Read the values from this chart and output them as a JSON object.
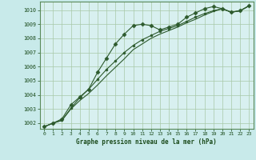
{
  "title": "Graphe pression niveau de la mer (hPa)",
  "bg_color": "#c8eaea",
  "plot_bg_color": "#d8f0f0",
  "grid_color": "#a8c8a8",
  "line_color": "#2d5a2d",
  "text_color": "#1a4a1a",
  "border_color": "#5a8a5a",
  "xlim": [
    -0.5,
    23.5
  ],
  "ylim": [
    1001.6,
    1010.6
  ],
  "yticks": [
    1002,
    1003,
    1004,
    1005,
    1006,
    1007,
    1008,
    1009,
    1010
  ],
  "xticks": [
    0,
    1,
    2,
    3,
    4,
    5,
    6,
    7,
    8,
    9,
    10,
    11,
    12,
    13,
    14,
    15,
    16,
    17,
    18,
    19,
    20,
    21,
    22,
    23
  ],
  "series1_x": [
    0,
    1,
    2,
    3,
    4,
    5,
    6,
    7,
    8,
    9,
    10,
    11,
    12,
    13,
    14,
    15,
    16,
    17,
    18,
    19,
    20,
    21,
    22,
    23
  ],
  "series1_y": [
    1001.75,
    1002.0,
    1002.3,
    1003.3,
    1003.85,
    1004.4,
    1005.6,
    1006.6,
    1007.6,
    1008.3,
    1008.9,
    1009.0,
    1008.9,
    1008.6,
    1008.8,
    1009.0,
    1009.5,
    1009.8,
    1010.1,
    1010.25,
    1010.1,
    1009.85,
    1009.95,
    1010.3
  ],
  "series2_x": [
    0,
    1,
    2,
    3,
    4,
    5,
    6,
    7,
    8,
    9,
    10,
    11,
    12,
    13,
    14,
    15,
    16,
    17,
    18,
    19,
    20,
    21,
    22,
    23
  ],
  "series2_y": [
    1001.75,
    1002.0,
    1002.2,
    1003.05,
    1003.8,
    1004.4,
    1005.1,
    1005.8,
    1006.4,
    1007.0,
    1007.5,
    1007.9,
    1008.2,
    1008.5,
    1008.7,
    1008.9,
    1009.2,
    1009.5,
    1009.75,
    1009.95,
    1010.1,
    1009.85,
    1009.95,
    1010.3
  ],
  "series3_x": [
    0,
    1,
    2,
    3,
    4,
    5,
    6,
    7,
    8,
    9,
    10,
    11,
    12,
    13,
    14,
    15,
    16,
    17,
    18,
    19,
    20,
    21,
    22,
    23
  ],
  "series3_y": [
    1001.75,
    1002.0,
    1002.2,
    1003.0,
    1003.6,
    1004.1,
    1004.7,
    1005.35,
    1005.95,
    1006.55,
    1007.2,
    1007.6,
    1008.0,
    1008.3,
    1008.55,
    1008.8,
    1009.1,
    1009.35,
    1009.65,
    1009.9,
    1010.1,
    1009.85,
    1009.95,
    1010.3
  ]
}
